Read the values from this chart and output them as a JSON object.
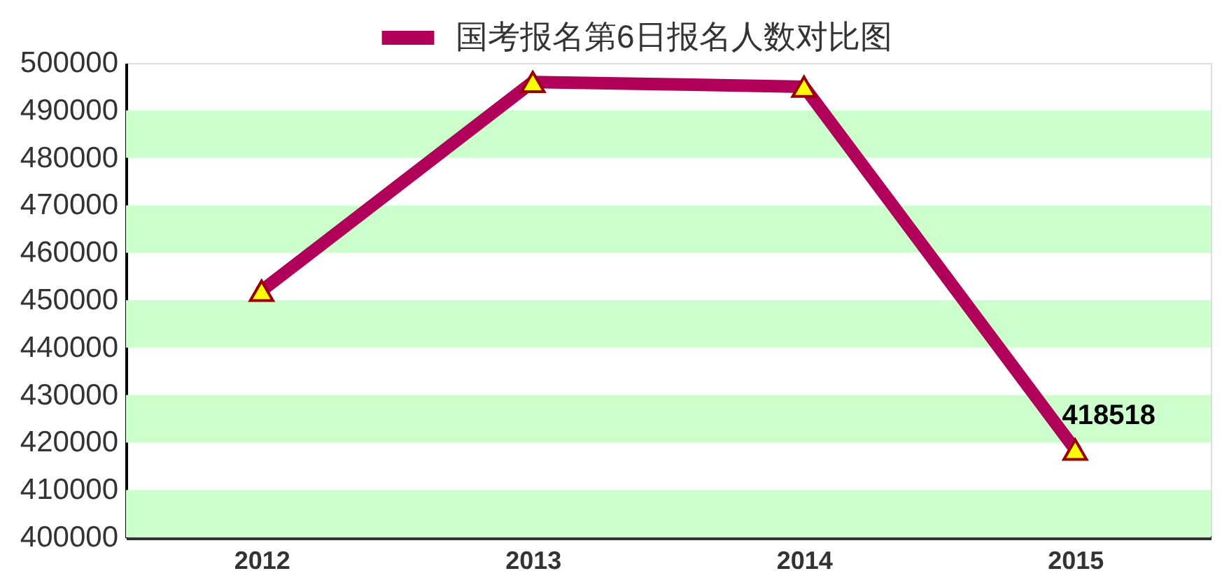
{
  "chart_data": {
    "type": "line",
    "categories": [
      "2012",
      "2013",
      "2014",
      "2015"
    ],
    "series": [
      {
        "name": "国考报名第6日报名人数对比图",
        "color": "#b0005a",
        "values": [
          452000,
          496000,
          495000,
          418518
        ],
        "value_labels": [
          null,
          null,
          null,
          "418518"
        ]
      }
    ],
    "ylim": [
      400000,
      500000
    ],
    "yticks": [
      400000,
      410000,
      420000,
      430000,
      440000,
      450000,
      460000,
      470000,
      480000,
      490000,
      500000
    ],
    "bands": [
      {
        "axis": "y",
        "from": 400000,
        "to": 410000,
        "color": "#ccffcc"
      },
      {
        "axis": "y",
        "from": 420000,
        "to": 430000,
        "color": "#ccffcc"
      },
      {
        "axis": "y",
        "from": 440000,
        "to": 450000,
        "color": "#ccffcc"
      },
      {
        "axis": "y",
        "from": 460000,
        "to": 470000,
        "color": "#ccffcc"
      },
      {
        "axis": "y",
        "from": 480000,
        "to": 490000,
        "color": "#ccffcc"
      }
    ],
    "legend": "top",
    "marker": "triangle",
    "line_style": "solid"
  }
}
